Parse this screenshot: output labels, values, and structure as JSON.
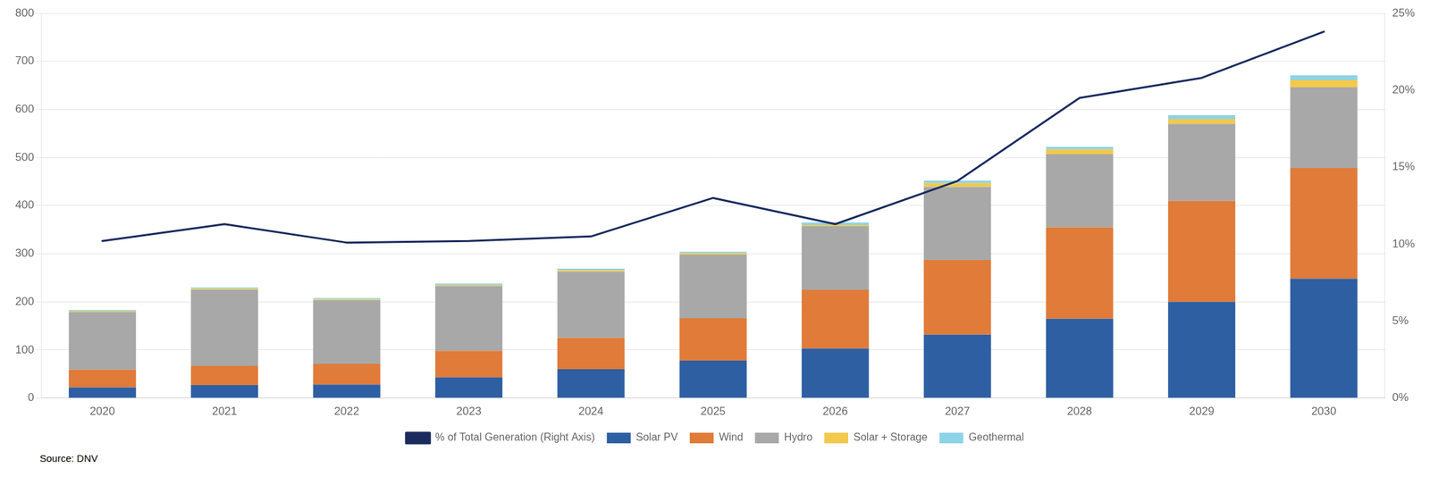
{
  "chart_data": {
    "type": "bar",
    "categories": [
      "2020",
      "2021",
      "2022",
      "2023",
      "2024",
      "2025",
      "2026",
      "2027",
      "2028",
      "2029",
      "2030"
    ],
    "series": [
      {
        "name": "Solar PV",
        "color": "#2E5FA3",
        "values": [
          22,
          27,
          28,
          43,
          60,
          78,
          103,
          132,
          165,
          200,
          248
        ]
      },
      {
        "name": "Wind",
        "color": "#E07B39",
        "values": [
          37,
          40,
          43,
          55,
          65,
          88,
          122,
          155,
          190,
          210,
          230
        ]
      },
      {
        "name": "Hydro",
        "color": "#A8A8A8",
        "values": [
          120,
          158,
          132,
          135,
          138,
          132,
          132,
          152,
          152,
          160,
          168
        ]
      },
      {
        "name": "Solar + Storage",
        "color": "#F2C94C",
        "values": [
          2,
          2,
          2,
          2,
          3,
          3,
          3,
          8,
          10,
          10,
          15
        ]
      },
      {
        "name": "Geothermal",
        "color": "#8DD3E7",
        "values": [
          2,
          3,
          3,
          3,
          3,
          3,
          5,
          5,
          5,
          8,
          10
        ]
      },
      {
        "name": "% of Total Generation (Right Axis)",
        "type": "line",
        "axis": "y2",
        "color": "#1A2B5E",
        "values": [
          10.2,
          11.3,
          10.1,
          10.2,
          10.5,
          13.0,
          11.3,
          14.1,
          19.5,
          20.8,
          23.8
        ]
      }
    ],
    "stacked": true,
    "ylim": [
      0,
      800
    ],
    "yticks": [
      0,
      100,
      200,
      300,
      400,
      500,
      600,
      700,
      800
    ],
    "y2lim": [
      0,
      25
    ],
    "y2ticks": [
      {
        "value": 0,
        "label": "0%"
      },
      {
        "value": 5,
        "label": "5%"
      },
      {
        "value": 10,
        "label": "10%"
      },
      {
        "value": 15,
        "label": "15%"
      },
      {
        "value": 20,
        "label": "20%"
      },
      {
        "value": 25,
        "label": "25%"
      }
    ],
    "grid": true,
    "legend": "bottom",
    "annotations": [
      "Source: DNV"
    ]
  }
}
